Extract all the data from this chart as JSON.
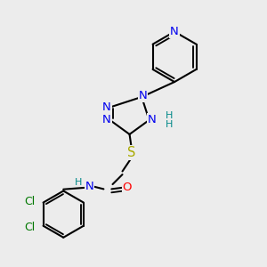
{
  "bg": "#ececec",
  "bc": "#000000",
  "bw": 1.5,
  "ac": {
    "N": "#0000ee",
    "S": "#aaaa00",
    "O": "#ff0000",
    "Cl": "#007700",
    "H": "#008888"
  },
  "fs": 9.5,
  "fss": 8.0
}
